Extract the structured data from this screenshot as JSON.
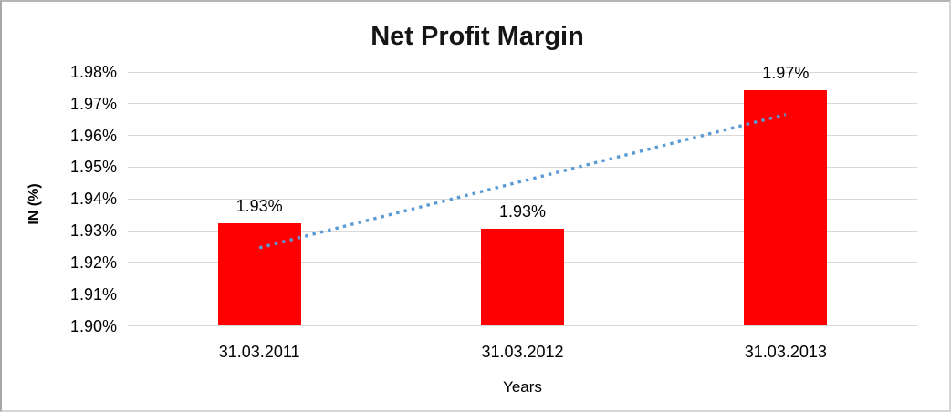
{
  "chart": {
    "title": "Net Profit Margin",
    "y_axis_title": "IN (%)",
    "x_axis_title": "Years"
  },
  "chart_data": {
    "type": "bar",
    "title": "Net Profit Margin",
    "xlabel": "Years",
    "ylabel": "IN (%)",
    "categories": [
      "31.03.2011",
      "31.03.2012",
      "31.03.2013"
    ],
    "values": [
      1.9322,
      1.9305,
      1.9742
    ],
    "value_labels": [
      "1.93%",
      "1.93%",
      "1.97%"
    ],
    "ylim": [
      1.9,
      1.98
    ],
    "y_tick_step": 0.01,
    "y_tick_labels": [
      "1.90%",
      "1.91%",
      "1.92%",
      "1.93%",
      "1.94%",
      "1.95%",
      "1.96%",
      "1.97%",
      "1.98%"
    ],
    "grid": true,
    "legend_position": "none",
    "bar_color": "#ff0000",
    "trendline": {
      "type": "linear",
      "style": "dotted",
      "color": "#5b9bd5",
      "start_value": 1.9246,
      "end_value": 1.9666
    },
    "gridline_color": "#d9d9d9"
  }
}
